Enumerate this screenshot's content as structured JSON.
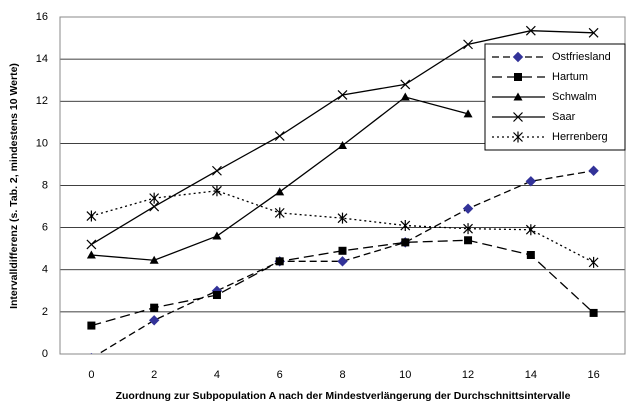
{
  "chart_data": {
    "type": "line",
    "x_label": "Zuordnung zur Subpopulation A nach der Mindestverlängerung der Durchschnittsintervalle",
    "y_label": "Intervalldifferenz (s. Tab. 2, mindestens 10 Werte)",
    "categories": [
      "0",
      "2",
      "4",
      "6",
      "8",
      "10",
      "12",
      "14",
      "16"
    ],
    "ylim": [
      0,
      16
    ],
    "yticks": [
      0,
      2,
      4,
      6,
      8,
      10,
      12,
      14,
      16
    ],
    "grid": true,
    "legend": "top-right",
    "series": [
      {
        "name": "Ostfriesland",
        "color": "#000000",
        "marker": "diamond",
        "marker_color": "#333399",
        "dash": "dashed",
        "values": [
          -0.2,
          1.6,
          3.0,
          4.4,
          4.4,
          5.3,
          6.9,
          8.2,
          8.7
        ]
      },
      {
        "name": "Hartum",
        "color": "#000000",
        "marker": "square",
        "marker_color": "#000000",
        "dash": "longdash",
        "values": [
          1.35,
          2.2,
          2.8,
          4.4,
          4.9,
          5.3,
          5.4,
          4.7,
          1.95
        ]
      },
      {
        "name": "Schwalm",
        "color": "#000000",
        "marker": "triangle",
        "marker_color": "#000000",
        "dash": "solid",
        "values": [
          4.7,
          4.45,
          5.6,
          7.7,
          9.9,
          12.2,
          11.4,
          null,
          null
        ]
      },
      {
        "name": "Saar",
        "color": "#000000",
        "marker": "cross",
        "marker_color": "#000000",
        "dash": "solid",
        "values": [
          5.2,
          7.0,
          8.7,
          10.35,
          12.3,
          12.8,
          14.7,
          15.35,
          15.25
        ]
      },
      {
        "name": "Herrenberg",
        "color": "#000000",
        "marker": "asterisk",
        "marker_color": "#000000",
        "dash": "dotted",
        "values": [
          6.55,
          7.4,
          7.75,
          6.7,
          6.45,
          6.1,
          5.95,
          5.9,
          4.35
        ]
      }
    ]
  }
}
